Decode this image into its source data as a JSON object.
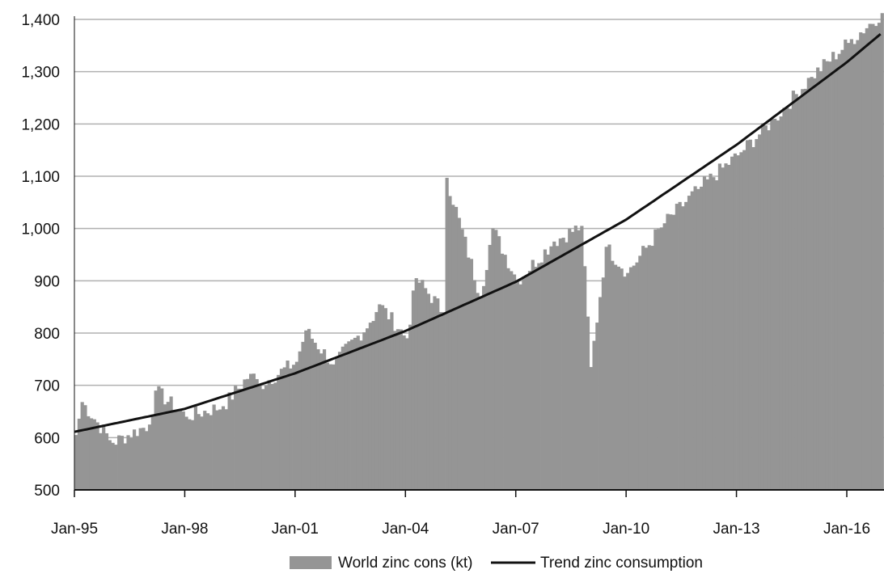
{
  "chart_data": {
    "type": "bar",
    "title": "",
    "xlabel": "",
    "ylabel": "",
    "ylim": [
      500,
      1400
    ],
    "yticks": [
      "500",
      "600",
      "700",
      "800",
      "900",
      "1,000",
      "1,100",
      "1,200",
      "1,300",
      "1,400"
    ],
    "xticks": [
      "Jan-95",
      "Jan-98",
      "Jan-01",
      "Jan-04",
      "Jan-07",
      "Jan-10",
      "Jan-13",
      "Jan-16"
    ],
    "grid": "horizontal",
    "legend_position": "bottom",
    "colors": {
      "bars": "#959595",
      "trend": "#111111",
      "grid": "#b0b0b0",
      "axis": "#111111"
    },
    "series": [
      {
        "name": "World zinc cons (kt)",
        "type": "bar",
        "note_x_unit": "monthly, Jan-95 to Jan-17",
        "key_points": [
          {
            "x": "Jan-95",
            "y": 605
          },
          {
            "x": "Mar-95",
            "y": 668
          },
          {
            "x": "Jan-96",
            "y": 590
          },
          {
            "x": "Jan-97",
            "y": 625
          },
          {
            "x": "Mar-97",
            "y": 690
          },
          {
            "x": "Jan-98",
            "y": 640
          },
          {
            "x": "Jan-99",
            "y": 660
          },
          {
            "x": "Oct-99",
            "y": 722
          },
          {
            "x": "Jan-00",
            "y": 700
          },
          {
            "x": "Jan-01",
            "y": 745
          },
          {
            "x": "Apr-01",
            "y": 805
          },
          {
            "x": "Jan-02",
            "y": 740
          },
          {
            "x": "Jan-03",
            "y": 820
          },
          {
            "x": "Apr-03",
            "y": 855
          },
          {
            "x": "Jan-04",
            "y": 790
          },
          {
            "x": "Apr-04",
            "y": 905
          },
          {
            "x": "Jan-05",
            "y": 840
          },
          {
            "x": "Feb-05",
            "y": 1097
          },
          {
            "x": "Jan-06",
            "y": 870
          },
          {
            "x": "May-06",
            "y": 1000
          },
          {
            "x": "Jan-07",
            "y": 900
          },
          {
            "x": "Jan-08",
            "y": 975
          },
          {
            "x": "Oct-08",
            "y": 1005
          },
          {
            "x": "Jan-09",
            "y": 735
          },
          {
            "x": "Jun-09",
            "y": 965
          },
          {
            "x": "Jan-10",
            "y": 915
          },
          {
            "x": "Jan-11",
            "y": 1010
          },
          {
            "x": "Jan-12",
            "y": 1080
          },
          {
            "x": "Jan-13",
            "y": 1140
          },
          {
            "x": "Jan-14",
            "y": 1210
          },
          {
            "x": "Jan-15",
            "y": 1290
          },
          {
            "x": "Jan-16",
            "y": 1355
          },
          {
            "x": "Dec-16",
            "y": 1412
          }
        ]
      },
      {
        "name": "Trend zinc consumption",
        "type": "line",
        "key_points": [
          {
            "x": "Jan-95",
            "y": 611
          },
          {
            "x": "Jan-98",
            "y": 655
          },
          {
            "x": "Jan-01",
            "y": 723
          },
          {
            "x": "Jan-04",
            "y": 804
          },
          {
            "x": "Jan-07",
            "y": 898
          },
          {
            "x": "Jan-10",
            "y": 1017
          },
          {
            "x": "Jan-13",
            "y": 1160
          },
          {
            "x": "Jan-16",
            "y": 1318
          },
          {
            "x": "Dec-16",
            "y": 1372
          }
        ]
      }
    ],
    "legend": [
      "World zinc cons (kt)",
      "Trend zinc consumption"
    ]
  }
}
